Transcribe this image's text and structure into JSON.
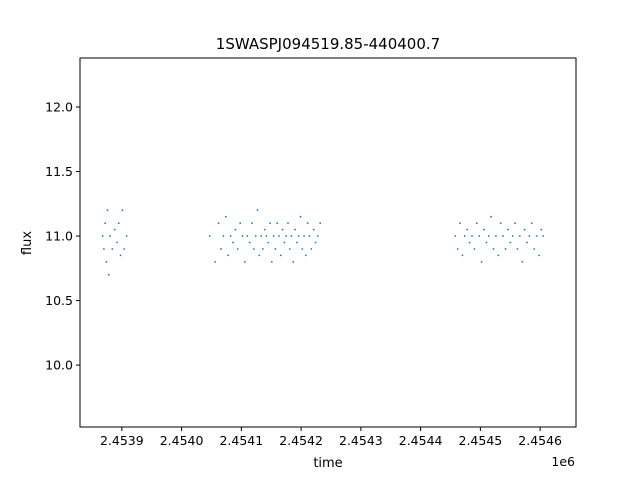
{
  "chart_data": {
    "type": "scatter",
    "title": "1SWASPJ094519.85-440400.7",
    "xlabel": "time",
    "ylabel": "flux",
    "x_offset_label": "1e6",
    "xlim": [
      2453830,
      2454660
    ],
    "ylim": [
      9.52,
      12.38
    ],
    "x_ticks": [
      2453900,
      2454000,
      2454100,
      2454200,
      2454300,
      2454400,
      2454500,
      2454600
    ],
    "x_tick_labels": [
      "2.4539",
      "2.4540",
      "2.4541",
      "2.4542",
      "2.4543",
      "2.4544",
      "2.4545",
      "2.4546"
    ],
    "y_ticks": [
      10.0,
      10.5,
      11.0,
      11.5,
      12.0
    ],
    "y_tick_labels": [
      "10.0",
      "10.5",
      "11.0",
      "11.5",
      "12.0"
    ],
    "grid": false,
    "marker_color": "#1f77b4",
    "series": [
      {
        "x": [
          2453868,
          2453870,
          2453872,
          2453874,
          2453876,
          2453878,
          2453880,
          2453884,
          2453888,
          2453892,
          2453895,
          2453898,
          2453901,
          2453904,
          2453908,
          2454047,
          2454056,
          2454062,
          2454066,
          2454070,
          2454074,
          2454078,
          2454082,
          2454086,
          2454090,
          2454094,
          2454098,
          2454102,
          2454106,
          2454110,
          2454114,
          2454118,
          2454121,
          2454124,
          2454127,
          2454130,
          2454133,
          2454136,
          2454139,
          2454142,
          2454145,
          2454148,
          2454151,
          2454154,
          2454157,
          2454160,
          2454163,
          2454166,
          2454169,
          2454172,
          2454175,
          2454178,
          2454181,
          2454184,
          2454187,
          2454190,
          2454193,
          2454196,
          2454199,
          2454202,
          2454205,
          2454208,
          2454211,
          2454214,
          2454217,
          2454221,
          2454224,
          2454228,
          2454232,
          2454458,
          2454462,
          2454466,
          2454470,
          2454474,
          2454478,
          2454482,
          2454486,
          2454490,
          2454494,
          2454498,
          2454502,
          2454506,
          2454510,
          2454514,
          2454518,
          2454522,
          2454526,
          2454530,
          2454534,
          2454538,
          2454542,
          2454546,
          2454550,
          2454554,
          2454558,
          2454562,
          2454566,
          2454570,
          2454574,
          2454578,
          2454582,
          2454586,
          2454590,
          2454594,
          2454598,
          2454602,
          2454605
        ],
        "y": [
          11.0,
          10.9,
          11.1,
          10.8,
          11.2,
          10.7,
          11.0,
          10.9,
          11.05,
          10.95,
          11.1,
          10.85,
          11.2,
          10.9,
          11.0,
          11.0,
          10.8,
          11.1,
          10.9,
          11.0,
          11.15,
          10.85,
          11.0,
          10.95,
          11.05,
          10.9,
          11.1,
          11.0,
          10.8,
          11.0,
          10.95,
          11.1,
          10.9,
          11.0,
          11.2,
          10.85,
          11.0,
          10.9,
          11.05,
          11.0,
          10.95,
          11.1,
          10.8,
          11.0,
          10.9,
          11.1,
          11.0,
          10.85,
          11.05,
          10.95,
          11.0,
          11.1,
          10.9,
          11.0,
          10.8,
          11.05,
          10.95,
          11.0,
          11.15,
          10.9,
          11.0,
          10.85,
          11.1,
          11.0,
          10.9,
          11.05,
          10.95,
          11.0,
          11.1,
          11.0,
          10.9,
          11.1,
          10.85,
          11.0,
          11.05,
          10.95,
          11.0,
          10.9,
          11.1,
          11.0,
          10.8,
          11.05,
          10.95,
          11.0,
          11.15,
          10.9,
          11.0,
          10.85,
          11.1,
          11.0,
          10.9,
          11.05,
          10.95,
          11.0,
          11.1,
          10.9,
          11.0,
          10.8,
          11.05,
          10.95,
          11.0,
          11.1,
          10.9,
          11.0,
          10.85,
          11.05,
          11.0
        ]
      }
    ]
  }
}
